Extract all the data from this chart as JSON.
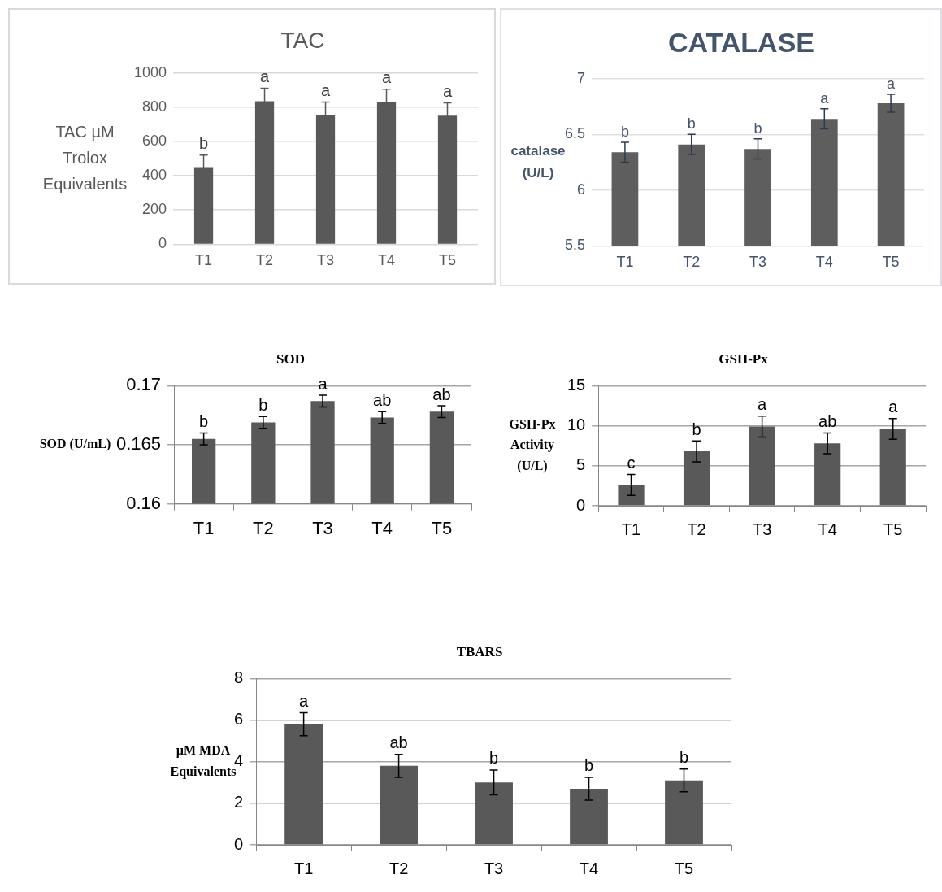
{
  "chart_data": [
    {
      "type": "bar",
      "title": "TAC",
      "ylabel": "TAC µM Trolox Equivalents",
      "categories": [
        "T1",
        "T2",
        "T3",
        "T4",
        "T5"
      ],
      "values": [
        450,
        835,
        755,
        830,
        750
      ],
      "errors": [
        70,
        75,
        75,
        75,
        75
      ],
      "color": "#595959",
      "ylim": [
        0,
        1000
      ],
      "yticks": [
        0,
        200,
        400,
        600,
        800,
        1000
      ],
      "grid": "y",
      "annotations": [
        {
          "text": "b",
          "x": "T1",
          "y": 520
        },
        {
          "text": "a",
          "x": "T2",
          "y": 910
        },
        {
          "text": "a",
          "x": "T3",
          "y": 830
        },
        {
          "text": "a",
          "x": "T4",
          "y": 905
        },
        {
          "text": "a",
          "x": "T5",
          "y": 825
        }
      ]
    },
    {
      "type": "bar",
      "title": "CATALASE",
      "ylabel": "catalase (U/L)",
      "categories": [
        "T1",
        "T2",
        "T3",
        "T4",
        "T5"
      ],
      "values": [
        6.34,
        6.41,
        6.37,
        6.64,
        6.78
      ],
      "errors": [
        0.09,
        0.09,
        0.09,
        0.09,
        0.08
      ],
      "color": "#5e5e5e",
      "ylim": [
        5.5,
        7
      ],
      "yticks": [
        5.5,
        6,
        6.5,
        7
      ],
      "grid": "y",
      "annotations": [
        {
          "text": "b",
          "x": "T1",
          "y": 6.43
        },
        {
          "text": "b",
          "x": "T2",
          "y": 6.5
        },
        {
          "text": "b",
          "x": "T3",
          "y": 6.46
        },
        {
          "text": "a",
          "x": "T4",
          "y": 6.73
        },
        {
          "text": "a",
          "x": "T5",
          "y": 6.86
        }
      ]
    },
    {
      "type": "bar",
      "title": "SOD",
      "ylabel": "SOD (U/mL)",
      "categories": [
        "T1",
        "T2",
        "T3",
        "T4",
        "T5"
      ],
      "values": [
        0.1655,
        0.1669,
        0.1687,
        0.1673,
        0.1678
      ],
      "errors": [
        0.0005,
        0.0005,
        0.0005,
        0.0005,
        0.0005
      ],
      "color": "#595959",
      "ylim": [
        0.16,
        0.17
      ],
      "yticks": [
        0.16,
        0.165,
        0.17
      ],
      "grid": "y",
      "annotations": [
        {
          "text": "b",
          "x": "T1",
          "y": 0.166
        },
        {
          "text": "b",
          "x": "T2",
          "y": 0.1674
        },
        {
          "text": "a",
          "x": "T3",
          "y": 0.1692
        },
        {
          "text": "ab",
          "x": "T4",
          "y": 0.1678
        },
        {
          "text": "ab",
          "x": "T5",
          "y": 0.1683
        }
      ]
    },
    {
      "type": "bar",
      "title": "GSH-Px",
      "ylabel": "GSH-Px Activity (U/L)",
      "categories": [
        "T1",
        "T2",
        "T3",
        "T4",
        "T5"
      ],
      "values": [
        2.6,
        6.8,
        9.9,
        7.8,
        9.6
      ],
      "errors": [
        1.3,
        1.3,
        1.3,
        1.3,
        1.3
      ],
      "color": "#595959",
      "ylim": [
        0,
        15
      ],
      "yticks": [
        0,
        5,
        10,
        15
      ],
      "grid": "y",
      "annotations": [
        {
          "text": "c",
          "x": "T1",
          "y": 3.9
        },
        {
          "text": "b",
          "x": "T2",
          "y": 8.1
        },
        {
          "text": "a",
          "x": "T3",
          "y": 11.2
        },
        {
          "text": "ab",
          "x": "T4",
          "y": 9.1
        },
        {
          "text": "a",
          "x": "T5",
          "y": 10.9
        }
      ]
    },
    {
      "type": "bar",
      "title": "TBARS",
      "ylabel": "µM MDA Equivalents",
      "categories": [
        "T1",
        "T2",
        "T3",
        "T4",
        "T5"
      ],
      "values": [
        5.8,
        3.8,
        3.0,
        2.7,
        3.1
      ],
      "errors": [
        0.55,
        0.55,
        0.6,
        0.55,
        0.55
      ],
      "color": "#595959",
      "ylim": [
        0,
        8
      ],
      "yticks": [
        0,
        2,
        4,
        6,
        8
      ],
      "grid": "y",
      "annotations": [
        {
          "text": "a",
          "x": "T1",
          "y": 6.35
        },
        {
          "text": "ab",
          "x": "T2",
          "y": 4.35
        },
        {
          "text": "b",
          "x": "T3",
          "y": 3.6
        },
        {
          "text": "b",
          "x": "T4",
          "y": 3.25
        },
        {
          "text": "b",
          "x": "T5",
          "y": 3.65
        }
      ]
    }
  ]
}
